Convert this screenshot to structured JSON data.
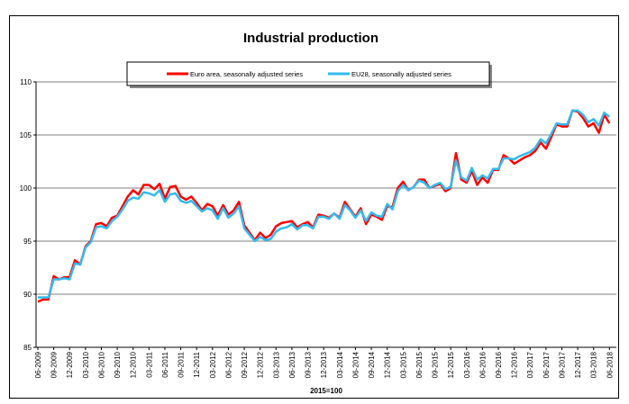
{
  "chart_data": {
    "type": "line",
    "title": "Industrial production",
    "xlabel": "2015=100",
    "ylabel": "",
    "ylim": [
      85,
      110
    ],
    "yticks": [
      85,
      90,
      95,
      100,
      105,
      110
    ],
    "legend_position": "top-center",
    "x_tick_labels": [
      "06-2009",
      "09-2009",
      "12-2009",
      "03-2010",
      "06-2010",
      "09-2010",
      "12-2010",
      "03-2011",
      "06-2011",
      "09-2011",
      "12-2011",
      "03-2012",
      "06-2012",
      "09-2012",
      "12-2012",
      "03-2013",
      "06-2013",
      "09-2013",
      "12-2013",
      "03-2014",
      "06-2014",
      "09-2014",
      "12-2014",
      "03-2015",
      "06-2015",
      "09-2015",
      "12-2015",
      "03-2016",
      "06-2016",
      "09-2016",
      "12-2016",
      "03-2017",
      "06-2017",
      "09-2017",
      "12-2017",
      "03-2018",
      "06-2018"
    ],
    "x": [
      "06-2009",
      "07-2009",
      "08-2009",
      "09-2009",
      "10-2009",
      "11-2009",
      "12-2009",
      "01-2010",
      "02-2010",
      "03-2010",
      "04-2010",
      "05-2010",
      "06-2010",
      "07-2010",
      "08-2010",
      "09-2010",
      "10-2010",
      "11-2010",
      "12-2010",
      "01-2011",
      "02-2011",
      "03-2011",
      "04-2011",
      "05-2011",
      "06-2011",
      "07-2011",
      "08-2011",
      "09-2011",
      "10-2011",
      "11-2011",
      "12-2011",
      "01-2012",
      "02-2012",
      "03-2012",
      "04-2012",
      "05-2012",
      "06-2012",
      "07-2012",
      "08-2012",
      "09-2012",
      "10-2012",
      "11-2012",
      "12-2012",
      "01-2013",
      "02-2013",
      "03-2013",
      "04-2013",
      "05-2013",
      "06-2013",
      "07-2013",
      "08-2013",
      "09-2013",
      "10-2013",
      "11-2013",
      "12-2013",
      "01-2014",
      "02-2014",
      "03-2014",
      "04-2014",
      "05-2014",
      "06-2014",
      "07-2014",
      "08-2014",
      "09-2014",
      "10-2014",
      "11-2014",
      "12-2014",
      "01-2015",
      "02-2015",
      "03-2015",
      "04-2015",
      "05-2015",
      "06-2015",
      "07-2015",
      "08-2015",
      "09-2015",
      "10-2015",
      "11-2015",
      "12-2015",
      "01-2016",
      "02-2016",
      "03-2016",
      "04-2016",
      "05-2016",
      "06-2016",
      "07-2016",
      "08-2016",
      "09-2016",
      "10-2016",
      "11-2016",
      "12-2016",
      "01-2017",
      "02-2017",
      "03-2017",
      "04-2017",
      "05-2017",
      "06-2017",
      "07-2017",
      "08-2017",
      "09-2017",
      "10-2017",
      "11-2017",
      "12-2017",
      "01-2018",
      "02-2018",
      "03-2018",
      "04-2018",
      "05-2018",
      "06-2018"
    ],
    "series": [
      {
        "name": "Euro area, seasonally adjusted series",
        "color": "#ff0000",
        "values": [
          89.3,
          89.5,
          89.5,
          91.7,
          91.4,
          91.6,
          91.6,
          93.2,
          92.8,
          94.5,
          95.0,
          96.6,
          96.7,
          96.4,
          97.2,
          97.4,
          98.3,
          99.2,
          99.8,
          99.4,
          100.3,
          100.3,
          99.9,
          100.4,
          99.0,
          100.1,
          100.2,
          99.2,
          98.9,
          99.2,
          98.6,
          97.9,
          98.5,
          98.3,
          97.4,
          98.4,
          97.5,
          97.9,
          98.7,
          96.5,
          95.8,
          95.1,
          95.8,
          95.3,
          95.6,
          96.4,
          96.7,
          96.8,
          96.9,
          96.3,
          96.6,
          96.8,
          96.3,
          97.5,
          97.4,
          97.2,
          97.6,
          97.2,
          98.7,
          98.0,
          97.3,
          98.1,
          96.6,
          97.5,
          97.3,
          97.0,
          98.3,
          98.2,
          100.0,
          100.6,
          99.8,
          100.1,
          100.8,
          100.8,
          100.0,
          100.2,
          100.4,
          99.7,
          100.0,
          103.3,
          100.8,
          100.5,
          101.6,
          100.3,
          101.0,
          100.5,
          101.7,
          101.7,
          103.1,
          102.8,
          102.3,
          102.6,
          102.9,
          103.1,
          103.5,
          104.3,
          103.7,
          104.8,
          106.0,
          105.8,
          105.8,
          107.3,
          107.2,
          106.6,
          105.8,
          106.1,
          105.2,
          106.9,
          106.1
        ]
      },
      {
        "name": "EU28, seasonally adjusted series",
        "color": "#33bbee",
        "values": [
          89.7,
          89.7,
          89.7,
          91.4,
          91.4,
          91.5,
          91.4,
          92.9,
          92.8,
          94.4,
          94.9,
          96.3,
          96.4,
          96.2,
          96.9,
          97.3,
          98.0,
          98.8,
          99.1,
          99.0,
          99.6,
          99.5,
          99.3,
          99.8,
          98.7,
          99.4,
          99.5,
          98.8,
          98.6,
          98.8,
          98.3,
          97.8,
          98.1,
          97.9,
          97.1,
          98.1,
          97.2,
          97.6,
          98.3,
          96.2,
          95.6,
          95.0,
          95.4,
          95.1,
          95.2,
          95.9,
          96.2,
          96.3,
          96.6,
          96.1,
          96.5,
          96.5,
          96.2,
          97.3,
          97.3,
          97.1,
          97.6,
          97.1,
          98.4,
          97.9,
          97.2,
          97.9,
          96.9,
          97.7,
          97.4,
          97.3,
          98.5,
          98.0,
          99.7,
          100.3,
          99.8,
          100.1,
          100.7,
          100.5,
          100.0,
          100.3,
          100.5,
          99.9,
          100.1,
          102.6,
          101.0,
          100.7,
          101.9,
          100.8,
          101.2,
          100.9,
          101.8,
          101.8,
          102.8,
          102.8,
          102.7,
          103.0,
          103.2,
          103.4,
          103.8,
          104.6,
          104.2,
          105.1,
          106.1,
          106.0,
          106.0,
          107.3,
          107.3,
          106.9,
          106.2,
          106.5,
          105.9,
          107.1,
          106.7
        ]
      }
    ]
  }
}
